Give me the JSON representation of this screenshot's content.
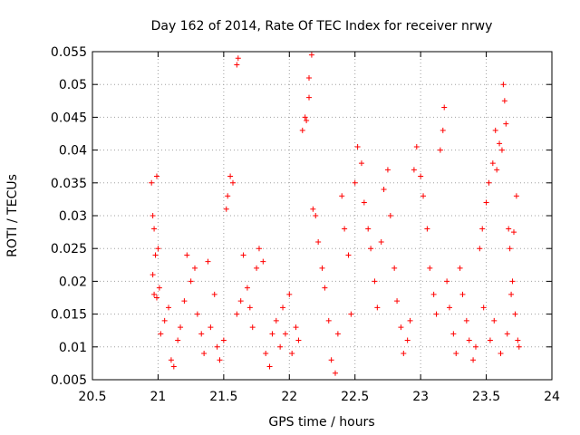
{
  "chart_data": {
    "type": "scatter",
    "title": "Day 162 of 2014, Rate Of TEC Index for receiver nrwy",
    "xlabel": "GPS time / hours",
    "ylabel": "ROTI / TECUs",
    "xlim": [
      20.5,
      24
    ],
    "ylim": [
      0.005,
      0.055
    ],
    "xticks": [
      "20.5",
      "21",
      "21.5",
      "22",
      "22.5",
      "23",
      "23.5",
      "24"
    ],
    "yticks": [
      "0.005",
      "0.01",
      "0.015",
      "0.02",
      "0.025",
      "0.03",
      "0.035",
      "0.04",
      "0.045",
      "0.05",
      "0.055"
    ],
    "grid": true,
    "marker": "+",
    "marker_color": "#ff0000",
    "series": [
      {
        "name": "ROTI",
        "points": [
          [
            20.95,
            0.035
          ],
          [
            20.96,
            0.03
          ],
          [
            20.97,
            0.028
          ],
          [
            20.98,
            0.024
          ],
          [
            20.99,
            0.036
          ],
          [
            21.0,
            0.025
          ],
          [
            21.01,
            0.019
          ],
          [
            20.96,
            0.021
          ],
          [
            20.97,
            0.018
          ],
          [
            20.99,
            0.0175
          ],
          [
            21.02,
            0.012
          ],
          [
            21.05,
            0.014
          ],
          [
            21.08,
            0.016
          ],
          [
            21.1,
            0.008
          ],
          [
            21.12,
            0.007
          ],
          [
            21.15,
            0.011
          ],
          [
            21.17,
            0.013
          ],
          [
            21.2,
            0.017
          ],
          [
            21.22,
            0.024
          ],
          [
            21.25,
            0.02
          ],
          [
            21.28,
            0.022
          ],
          [
            21.3,
            0.015
          ],
          [
            21.33,
            0.012
          ],
          [
            21.35,
            0.009
          ],
          [
            21.38,
            0.023
          ],
          [
            21.4,
            0.013
          ],
          [
            21.43,
            0.018
          ],
          [
            21.45,
            0.01
          ],
          [
            21.47,
            0.008
          ],
          [
            21.5,
            0.011
          ],
          [
            21.52,
            0.031
          ],
          [
            21.53,
            0.033
          ],
          [
            21.55,
            0.036
          ],
          [
            21.57,
            0.035
          ],
          [
            21.6,
            0.053
          ],
          [
            21.61,
            0.054
          ],
          [
            21.6,
            0.015
          ],
          [
            21.63,
            0.017
          ],
          [
            21.65,
            0.024
          ],
          [
            21.68,
            0.019
          ],
          [
            21.7,
            0.016
          ],
          [
            21.72,
            0.013
          ],
          [
            21.75,
            0.022
          ],
          [
            21.77,
            0.025
          ],
          [
            21.8,
            0.023
          ],
          [
            21.82,
            0.009
          ],
          [
            21.85,
            0.007
          ],
          [
            21.87,
            0.012
          ],
          [
            21.9,
            0.014
          ],
          [
            21.93,
            0.01
          ],
          [
            21.95,
            0.016
          ],
          [
            21.97,
            0.012
          ],
          [
            22.0,
            0.018
          ],
          [
            22.02,
            0.009
          ],
          [
            22.05,
            0.013
          ],
          [
            22.07,
            0.011
          ],
          [
            22.1,
            0.043
          ],
          [
            22.12,
            0.045
          ],
          [
            22.13,
            0.0445
          ],
          [
            22.15,
            0.048
          ],
          [
            22.15,
            0.051
          ],
          [
            22.17,
            0.0545
          ],
          [
            22.18,
            0.031
          ],
          [
            22.2,
            0.03
          ],
          [
            22.22,
            0.026
          ],
          [
            22.25,
            0.022
          ],
          [
            22.27,
            0.019
          ],
          [
            22.3,
            0.014
          ],
          [
            22.32,
            0.008
          ],
          [
            22.35,
            0.006
          ],
          [
            22.37,
            0.012
          ],
          [
            22.4,
            0.033
          ],
          [
            22.42,
            0.028
          ],
          [
            22.45,
            0.024
          ],
          [
            22.47,
            0.015
          ],
          [
            22.5,
            0.035
          ],
          [
            22.52,
            0.0405
          ],
          [
            22.55,
            0.038
          ],
          [
            22.57,
            0.032
          ],
          [
            22.6,
            0.028
          ],
          [
            22.62,
            0.025
          ],
          [
            22.65,
            0.02
          ],
          [
            22.67,
            0.016
          ],
          [
            22.7,
            0.026
          ],
          [
            22.72,
            0.034
          ],
          [
            22.75,
            0.037
          ],
          [
            22.77,
            0.03
          ],
          [
            22.8,
            0.022
          ],
          [
            22.82,
            0.017
          ],
          [
            22.85,
            0.013
          ],
          [
            22.87,
            0.009
          ],
          [
            22.9,
            0.011
          ],
          [
            22.92,
            0.014
          ],
          [
            22.95,
            0.037
          ],
          [
            22.97,
            0.0405
          ],
          [
            23.0,
            0.036
          ],
          [
            23.02,
            0.033
          ],
          [
            23.05,
            0.028
          ],
          [
            23.07,
            0.022
          ],
          [
            23.1,
            0.018
          ],
          [
            23.12,
            0.015
          ],
          [
            23.15,
            0.04
          ],
          [
            23.17,
            0.043
          ],
          [
            23.18,
            0.0465
          ],
          [
            23.2,
            0.02
          ],
          [
            23.22,
            0.016
          ],
          [
            23.25,
            0.012
          ],
          [
            23.27,
            0.009
          ],
          [
            23.3,
            0.022
          ],
          [
            23.32,
            0.018
          ],
          [
            23.35,
            0.014
          ],
          [
            23.37,
            0.011
          ],
          [
            23.4,
            0.008
          ],
          [
            23.42,
            0.01
          ],
          [
            23.45,
            0.025
          ],
          [
            23.47,
            0.028
          ],
          [
            23.5,
            0.032
          ],
          [
            23.52,
            0.035
          ],
          [
            23.55,
            0.038
          ],
          [
            23.57,
            0.043
          ],
          [
            23.58,
            0.037
          ],
          [
            23.6,
            0.041
          ],
          [
            23.62,
            0.04
          ],
          [
            23.63,
            0.05
          ],
          [
            23.64,
            0.0475
          ],
          [
            23.65,
            0.044
          ],
          [
            23.67,
            0.028
          ],
          [
            23.68,
            0.025
          ],
          [
            23.7,
            0.02
          ],
          [
            23.72,
            0.015
          ],
          [
            23.73,
            0.033
          ],
          [
            23.74,
            0.011
          ],
          [
            23.75,
            0.01
          ],
          [
            23.71,
            0.0275
          ],
          [
            23.69,
            0.018
          ],
          [
            23.66,
            0.012
          ],
          [
            23.61,
            0.009
          ],
          [
            23.56,
            0.014
          ],
          [
            23.53,
            0.011
          ],
          [
            23.48,
            0.016
          ]
        ]
      }
    ]
  }
}
